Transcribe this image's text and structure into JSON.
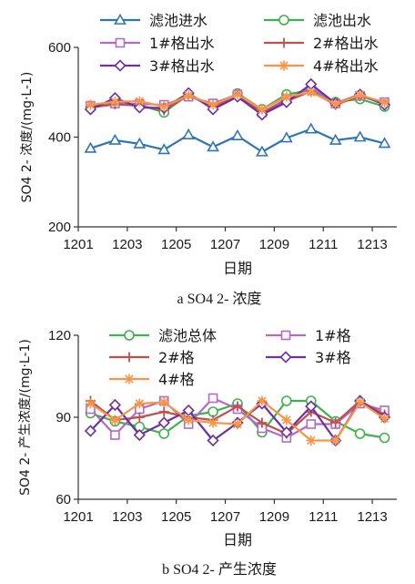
{
  "chart_data": [
    {
      "type": "line",
      "x_tick_labels": [
        "1201",
        "1203",
        "1205",
        "1207",
        "1209",
        "1211",
        "1213"
      ],
      "y_tick_labels": [
        "200",
        "400",
        "600"
      ],
      "ylim": [
        200,
        600
      ],
      "ylabel": "SO4 2- 浓度/(mg·L-1)",
      "xlabel": "日期",
      "caption": "a SO4 2- 浓度",
      "legend_placement": "top",
      "grid": false,
      "series": [
        {
          "name": "滤池进水",
          "color": "#2e75b6",
          "marker": "triangle",
          "values": [
            375,
            393,
            385,
            372,
            405,
            378,
            403,
            367,
            398,
            418,
            393,
            400,
            386
          ]
        },
        {
          "name": "滤池出水",
          "color": "#3cb44b",
          "marker": "circle",
          "values": [
            468,
            478,
            472,
            455,
            495,
            470,
            497,
            462,
            495,
            505,
            478,
            485,
            468
          ]
        },
        {
          "name": "1#格出水",
          "color": "#b469c6",
          "marker": "square",
          "values": [
            470,
            475,
            474,
            472,
            490,
            475,
            495,
            455,
            485,
            510,
            475,
            492,
            478
          ]
        },
        {
          "name": "2#格出水",
          "color": "#c0504d",
          "marker": "plus",
          "values": [
            466,
            473,
            470,
            460,
            493,
            468,
            490,
            455,
            480,
            502,
            472,
            492,
            475
          ]
        },
        {
          "name": "3#格出水",
          "color": "#7030a0",
          "marker": "diamond",
          "values": [
            462,
            487,
            466,
            465,
            498,
            462,
            490,
            450,
            478,
            518,
            475,
            495,
            472
          ]
        },
        {
          "name": "4#格出水",
          "color": "#f79646",
          "marker": "asterisk",
          "values": [
            472,
            479,
            480,
            468,
            493,
            472,
            495,
            462,
            490,
            500,
            474,
            494,
            477
          ]
        }
      ]
    },
    {
      "type": "line",
      "x_tick_labels": [
        "1201",
        "1203",
        "1205",
        "1207",
        "1209",
        "1211",
        "1213"
      ],
      "y_tick_labels": [
        "60",
        "90",
        "120"
      ],
      "ylim": [
        60,
        120
      ],
      "ylabel": "SO4 2- 产生浓度/(mg·L-1)",
      "xlabel": "日期",
      "caption": "b SO4 2- 产生浓度",
      "legend_placement": "top",
      "grid": false,
      "series": [
        {
          "name": "滤池总体",
          "color": "#3cb44b",
          "marker": "circle",
          "values": [
            91.5,
            88.5,
            86.5,
            84,
            90.5,
            92,
            95,
            84.5,
            96,
            96,
            88.5,
            84,
            82.5
          ]
        },
        {
          "name": "1#格",
          "color": "#b469c6",
          "marker": "square",
          "values": [
            93,
            83.5,
            93,
            96,
            87.5,
            97,
            93,
            86,
            82.5,
            87.5,
            87.5,
            95,
            92.5
          ]
        },
        {
          "name": "2#格",
          "color": "#c0504d",
          "marker": "plus",
          "values": [
            96,
            89,
            90,
            92,
            90,
            89,
            94,
            88,
            84,
            92,
            88,
            96,
            91
          ]
        },
        {
          "name": "3#格",
          "color": "#7030a0",
          "marker": "diamond",
          "values": [
            85,
            94.5,
            83.5,
            88,
            92.5,
            81.5,
            88,
            95,
            84.5,
            94,
            81.5,
            96,
            90
          ]
        },
        {
          "name": "4#格",
          "color": "#f79646",
          "marker": "asterisk",
          "values": [
            95,
            89,
            95,
            95.5,
            89,
            88,
            87.5,
            96,
            89,
            81.5,
            81.5,
            95.5,
            89.5
          ]
        }
      ]
    }
  ]
}
